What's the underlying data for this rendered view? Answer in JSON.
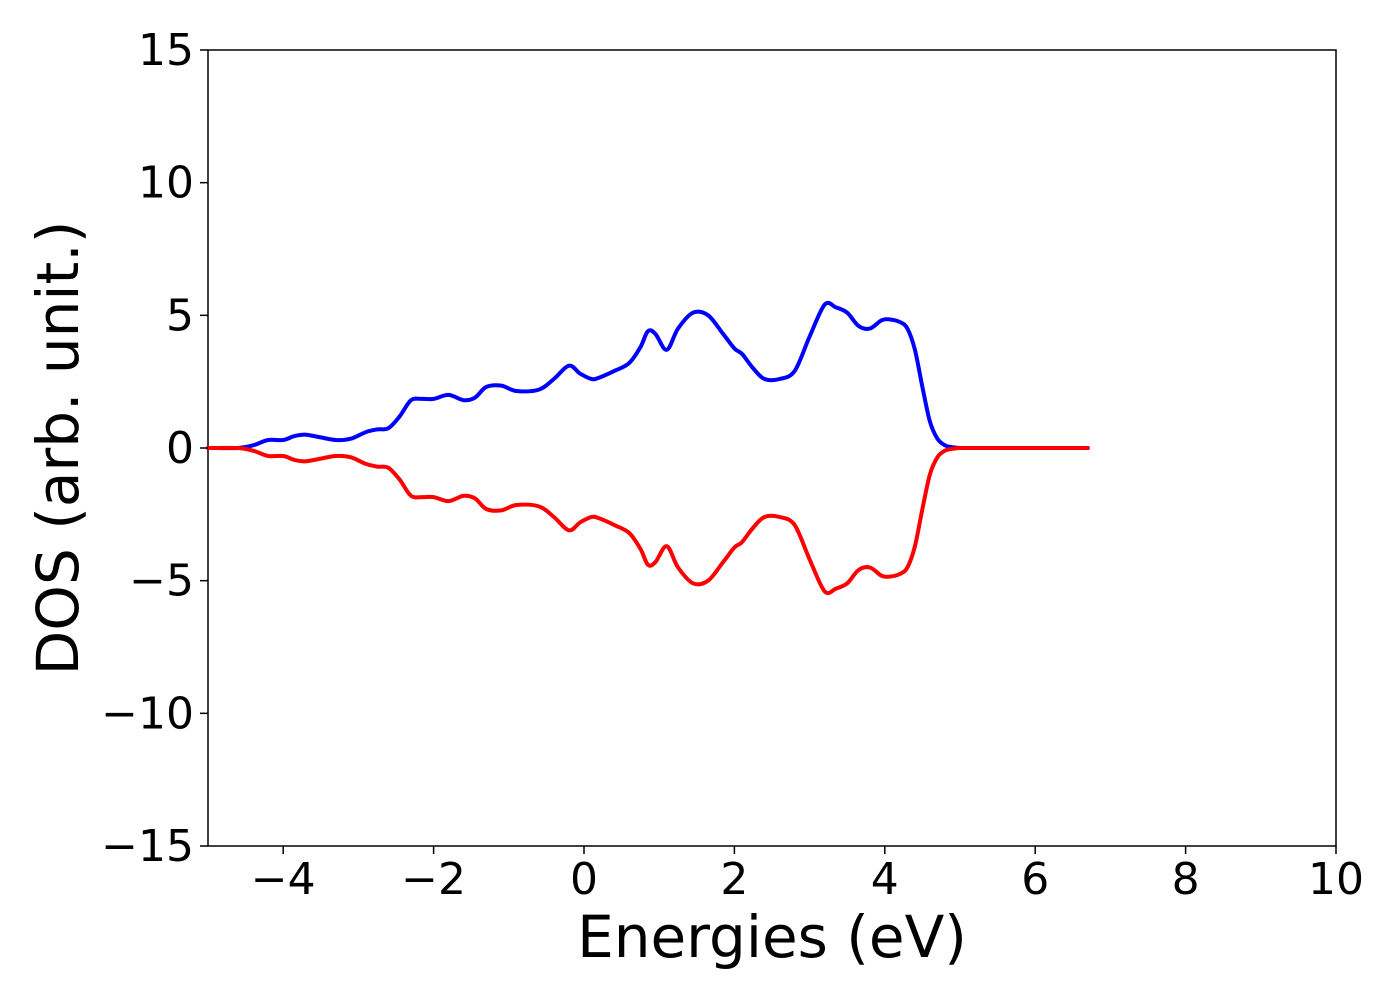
{
  "chart_data": {
    "type": "line",
    "title": "",
    "xlabel": "Energies (eV)",
    "ylabel": "DOS (arb. unit.)",
    "xlim": [
      -5,
      10
    ],
    "ylim": [
      -15,
      15
    ],
    "xticks": [
      -4,
      -2,
      0,
      2,
      4,
      6,
      8,
      10
    ],
    "yticks": [
      -15,
      -10,
      -5,
      0,
      5,
      10,
      15
    ],
    "xtick_labels": [
      "−4",
      "−2",
      "0",
      "2",
      "4",
      "6",
      "8",
      "10"
    ],
    "ytick_labels": [
      "−15",
      "−10",
      "−5",
      "0",
      "5",
      "10",
      "15"
    ],
    "grid": false,
    "legend": "none",
    "series": [
      {
        "color": "#0000ff",
        "x": [
          -5.0,
          -4.6,
          -4.4,
          -4.2,
          -4.0,
          -3.85,
          -3.7,
          -3.5,
          -3.3,
          -3.1,
          -2.9,
          -2.75,
          -2.6,
          -2.45,
          -2.3,
          -2.15,
          -2.0,
          -1.8,
          -1.6,
          -1.45,
          -1.3,
          -1.1,
          -0.9,
          -0.6,
          -0.4,
          -0.2,
          -0.05,
          0.1,
          0.2,
          0.4,
          0.6,
          0.75,
          0.85,
          0.95,
          1.1,
          1.25,
          1.45,
          1.65,
          1.85,
          2.0,
          2.1,
          2.25,
          2.4,
          2.6,
          2.8,
          3.0,
          3.2,
          3.35,
          3.5,
          3.65,
          3.8,
          3.95,
          4.05,
          4.2,
          4.3,
          4.4,
          4.5,
          4.6,
          4.7,
          4.8,
          4.9,
          5.0,
          5.2,
          5.5,
          6.0,
          6.7
        ],
        "values": [
          0.0,
          0.0,
          0.1,
          0.3,
          0.3,
          0.45,
          0.5,
          0.4,
          0.3,
          0.35,
          0.6,
          0.7,
          0.75,
          1.2,
          1.8,
          1.85,
          1.85,
          2.0,
          1.8,
          1.9,
          2.3,
          2.35,
          2.15,
          2.2,
          2.6,
          3.1,
          2.8,
          2.6,
          2.65,
          2.9,
          3.2,
          3.8,
          4.4,
          4.3,
          3.7,
          4.5,
          5.1,
          5.0,
          4.3,
          3.75,
          3.55,
          3.0,
          2.6,
          2.6,
          2.9,
          4.2,
          5.4,
          5.3,
          5.1,
          4.6,
          4.5,
          4.8,
          4.85,
          4.75,
          4.5,
          3.7,
          2.3,
          1.0,
          0.35,
          0.1,
          0.03,
          0.0,
          0.0,
          0.0,
          0.0,
          0.0
        ]
      },
      {
        "color": "#ff0000",
        "x": [
          -5.0,
          -4.6,
          -4.4,
          -4.2,
          -4.0,
          -3.85,
          -3.7,
          -3.5,
          -3.3,
          -3.1,
          -2.9,
          -2.75,
          -2.6,
          -2.45,
          -2.3,
          -2.15,
          -2.0,
          -1.8,
          -1.6,
          -1.45,
          -1.3,
          -1.1,
          -0.9,
          -0.6,
          -0.4,
          -0.2,
          -0.05,
          0.1,
          0.2,
          0.4,
          0.6,
          0.75,
          0.85,
          0.95,
          1.1,
          1.25,
          1.45,
          1.65,
          1.85,
          2.0,
          2.1,
          2.25,
          2.4,
          2.6,
          2.8,
          3.0,
          3.2,
          3.35,
          3.5,
          3.65,
          3.8,
          3.95,
          4.05,
          4.2,
          4.3,
          4.4,
          4.5,
          4.6,
          4.7,
          4.8,
          4.9,
          5.0,
          5.2,
          5.5,
          6.0,
          6.7
        ],
        "values": [
          0.0,
          0.0,
          -0.1,
          -0.3,
          -0.3,
          -0.45,
          -0.5,
          -0.4,
          -0.3,
          -0.35,
          -0.6,
          -0.7,
          -0.75,
          -1.2,
          -1.8,
          -1.85,
          -1.85,
          -2.0,
          -1.8,
          -1.9,
          -2.3,
          -2.35,
          -2.15,
          -2.2,
          -2.6,
          -3.1,
          -2.8,
          -2.6,
          -2.65,
          -2.9,
          -3.2,
          -3.8,
          -4.4,
          -4.3,
          -3.7,
          -4.5,
          -5.1,
          -5.0,
          -4.3,
          -3.75,
          -3.55,
          -3.0,
          -2.6,
          -2.6,
          -2.9,
          -4.2,
          -5.4,
          -5.3,
          -5.1,
          -4.6,
          -4.5,
          -4.8,
          -4.85,
          -4.75,
          -4.5,
          -3.7,
          -2.3,
          -1.0,
          -0.35,
          -0.1,
          -0.03,
          0.0,
          0.0,
          0.0,
          0.0,
          0.0
        ]
      }
    ]
  }
}
